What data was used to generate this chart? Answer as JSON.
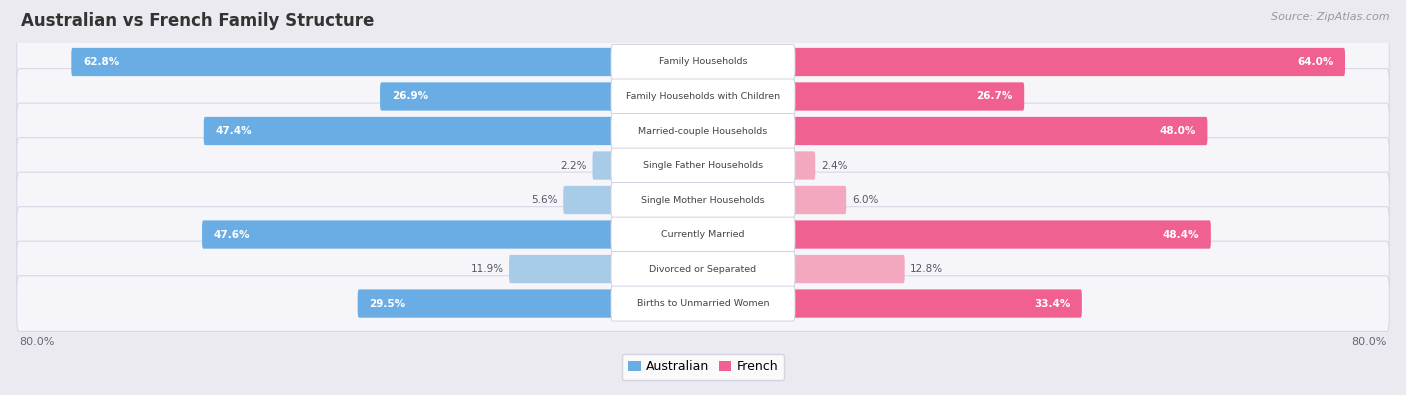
{
  "title": "Australian vs French Family Structure",
  "source": "Source: ZipAtlas.com",
  "categories": [
    "Family Households",
    "Family Households with Children",
    "Married-couple Households",
    "Single Father Households",
    "Single Mother Households",
    "Currently Married",
    "Divorced or Separated",
    "Births to Unmarried Women"
  ],
  "australian_values": [
    62.8,
    26.9,
    47.4,
    2.2,
    5.6,
    47.6,
    11.9,
    29.5
  ],
  "french_values": [
    64.0,
    26.7,
    48.0,
    2.4,
    6.0,
    48.4,
    12.8,
    33.4
  ],
  "aus_color_strong": "#6aade4",
  "aus_color_light": "#a8cce8",
  "fra_color_strong": "#f06090",
  "fra_color_light": "#f4a8c0",
  "axis_max": 80.0,
  "bg_color": "#eaeaf0",
  "row_bg_color": "#f5f5fa",
  "row_border_color": "#d8d8e8"
}
